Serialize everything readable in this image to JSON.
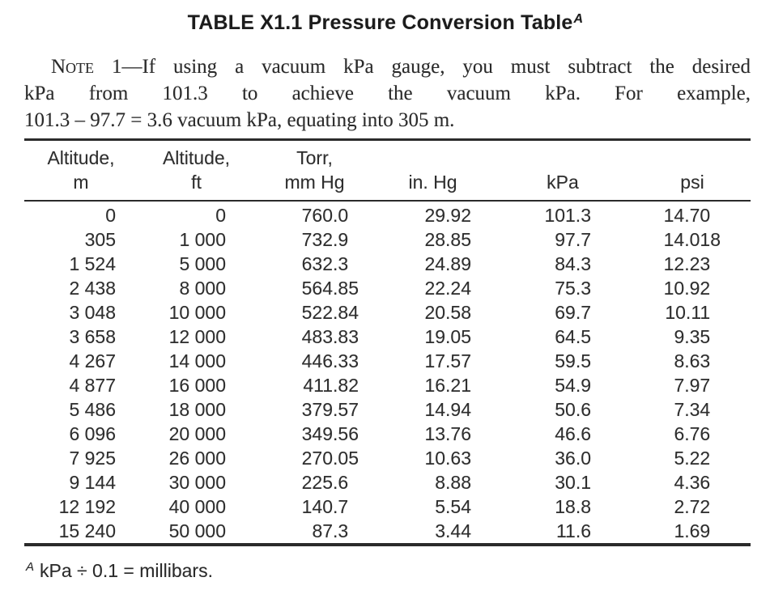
{
  "title": {
    "text": "TABLE X1.1 Pressure Conversion Table",
    "footnote_ref": "A"
  },
  "note": {
    "label": "Note 1",
    "lines": [
      "—If using a vacuum kPa gauge, you must subtract the desired",
      "kPa from 101.3 to achieve the vacuum kPa. For example,",
      "101.3 – 97.7 = 3.6 vacuum kPa, equating into 305 m."
    ]
  },
  "table": {
    "columns": [
      {
        "key": "altitude-m",
        "line1": "Altitude,",
        "line2": "m"
      },
      {
        "key": "altitude-ft",
        "line1": "Altitude,",
        "line2": "ft"
      },
      {
        "key": "torr-mm-hg",
        "line1": "Torr,",
        "line2": "mm Hg"
      },
      {
        "key": "in-hg",
        "line1": "",
        "line2": "in. Hg"
      },
      {
        "key": "kpa",
        "line1": "",
        "line2": "kPa"
      },
      {
        "key": "psi",
        "line1": "",
        "line2": "psi"
      }
    ],
    "rows": [
      [
        "0",
        "0",
        "760.0",
        "29.92",
        "101.3",
        "14.70"
      ],
      [
        "305",
        "1 000",
        "732.9",
        "28.85",
        "97.7",
        "14.018"
      ],
      [
        "1 524",
        "5 000",
        "632.3",
        "24.89",
        "84.3",
        "12.23"
      ],
      [
        "2 438",
        "8 000",
        "564.85",
        "22.24",
        "75.3",
        "10.92"
      ],
      [
        "3 048",
        "10 000",
        "522.84",
        "20.58",
        "69.7",
        "10.11"
      ],
      [
        "3 658",
        "12 000",
        "483.83",
        "19.05",
        "64.5",
        "9.35"
      ],
      [
        "4 267",
        "14 000",
        "446.33",
        "17.57",
        "59.5",
        "8.63"
      ],
      [
        "4 877",
        "16 000",
        "411.82",
        "16.21",
        "54.9",
        "7.97"
      ],
      [
        "5 486",
        "18 000",
        "379.57",
        "14.94",
        "50.6",
        "7.34"
      ],
      [
        "6 096",
        "20 000",
        "349.56",
        "13.76",
        "46.6",
        "6.76"
      ],
      [
        "7 925",
        "26 000",
        "270.05",
        "10.63",
        "36.0",
        "5.22"
      ],
      [
        "9 144",
        "30 000",
        "225.6",
        "8.88",
        "30.1",
        "4.36"
      ],
      [
        "12 192",
        "40 000",
        "140.7",
        "5.54",
        "18.8",
        "2.72"
      ],
      [
        "15 240",
        "50 000",
        "87.3",
        "3.44",
        "11.6",
        "1.69"
      ]
    ]
  },
  "footnote": {
    "ref": "A",
    "text": "kPa ÷ 0.1 = millibars."
  },
  "colors": {
    "text": "#262626",
    "rule": "#2b2b2b",
    "background": "#ffffff"
  }
}
